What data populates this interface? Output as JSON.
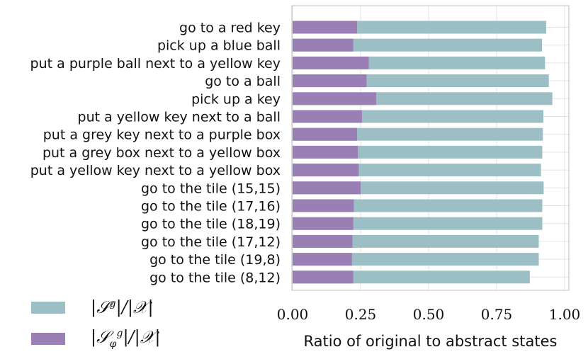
{
  "chart_data": {
    "type": "bar",
    "orientation": "horizontal",
    "stacked": false,
    "overlapping": true,
    "categories": [
      "go to a red key",
      "pick up a blue ball",
      "put a purple ball next to a yellow key",
      "go to a ball",
      "pick up a key",
      "put a yellow key next to a ball",
      "put a grey key next to a purple box",
      "put a grey box next to a yellow box",
      "put a yellow key next to a yellow box",
      "go to the tile (15,15)",
      "go to the tile (17,16)",
      "go to the tile (18,19)",
      "go to the tile (17,12)",
      "go to the tile (19,8)",
      "go to the tile (8,12)"
    ],
    "series": [
      {
        "name": "|S^g|/|X|",
        "color": "#9bbfc5",
        "values": [
          0.932,
          0.917,
          0.928,
          0.942,
          0.955,
          0.922,
          0.92,
          0.918,
          0.913,
          0.923,
          0.918,
          0.918,
          0.905,
          0.905,
          0.872
        ]
      },
      {
        "name": "|S_phi^g|/|X|",
        "color": "#9a7fb5",
        "values": [
          0.237,
          0.223,
          0.28,
          0.272,
          0.307,
          0.255,
          0.237,
          0.24,
          0.243,
          0.25,
          0.225,
          0.223,
          0.22,
          0.218,
          0.223
        ]
      }
    ],
    "xlabel": "Ratio of original to abstract states",
    "xlim": [
      0,
      1
    ],
    "xticks": [
      "0.00",
      "0.25",
      "0.50",
      "0.75",
      "1.00"
    ],
    "grid": true,
    "legend_position": "bottom-left"
  }
}
